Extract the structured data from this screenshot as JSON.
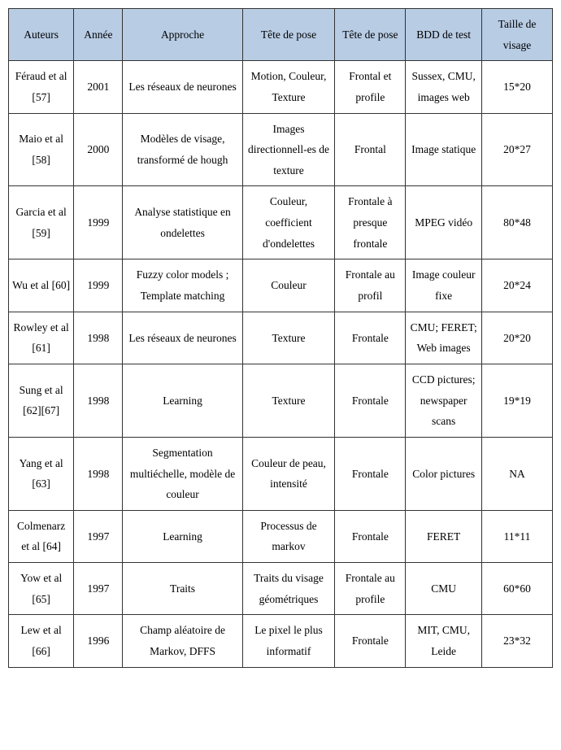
{
  "table": {
    "header_bg": "#b8cce4",
    "columns": [
      "Auteurs",
      "Année",
      "Approche",
      "Tête de pose",
      "Tête de pose",
      "BDD de test",
      "Taille de visage"
    ],
    "rows": [
      {
        "auteurs": "Féraud et al [57]",
        "annee": "2001",
        "approche": "Les réseaux de neurones",
        "tete1": "Motion, Couleur, Texture",
        "tete2": "Frontal et profile",
        "bdd": "Sussex, CMU, images web",
        "taille": "15*20"
      },
      {
        "auteurs": "Maio et al [58]",
        "annee": "2000",
        "approche": "Modèles de visage, transformé de hough",
        "tete1": "Images directionnell-es de texture",
        "tete2": "Frontal",
        "bdd": "Image statique",
        "taille": "20*27"
      },
      {
        "auteurs": "Garcia et al [59]",
        "annee": "1999",
        "approche": "Analyse statistique en ondelettes",
        "tete1": "Couleur, coefficient d'ondelettes",
        "tete2": "Frontale à presque frontale",
        "bdd": "MPEG vidéo",
        "taille": "80*48"
      },
      {
        "auteurs": "Wu et al [60]",
        "annee": "1999",
        "approche": "Fuzzy color models ; Template matching",
        "tete1": "Couleur",
        "tete2": "Frontale au profil",
        "bdd": "Image couleur fixe",
        "taille": "20*24"
      },
      {
        "auteurs": "Rowley et al [61]",
        "annee": "1998",
        "approche": "Les réseaux de neurones",
        "tete1": "Texture",
        "tete2": "Frontale",
        "bdd": "CMU; FERET; Web images",
        "taille": "20*20"
      },
      {
        "auteurs": "Sung et al [62][67]",
        "annee": "1998",
        "approche": "Learning",
        "tete1": "Texture",
        "tete2": "Frontale",
        "bdd": "CCD pictures; newspaper scans",
        "taille": "19*19"
      },
      {
        "auteurs": "Yang et al [63]",
        "annee": "1998",
        "approche": "Segmentation multiéchelle, modèle de couleur",
        "tete1": "Couleur de peau, intensité",
        "tete2": "Frontale",
        "bdd": "Color pictures",
        "taille": "NA"
      },
      {
        "auteurs": "Colmenarz et al [64]",
        "annee": "1997",
        "approche": "Learning",
        "tete1": "Processus de markov",
        "tete2": "Frontale",
        "bdd": "FERET",
        "taille": "11*11"
      },
      {
        "auteurs": "Yow et al [65]",
        "annee": "1997",
        "approche": "Traits",
        "tete1": "Traits du visage géométriques",
        "tete2": "Frontale au profile",
        "bdd": "CMU",
        "taille": "60*60"
      },
      {
        "auteurs": "Lew et al [66]",
        "annee": "1996",
        "approche": "Champ aléatoire de Markov, DFFS",
        "tete1": "Le pixel le plus informatif",
        "tete2": "Frontale",
        "bdd": "MIT, CMU, Leide",
        "taille": "23*32"
      }
    ]
  }
}
